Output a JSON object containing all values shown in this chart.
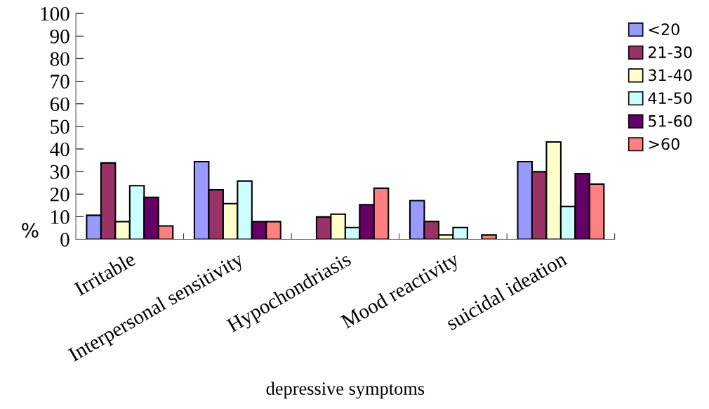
{
  "chart_data": {
    "type": "bar",
    "xlabel": "depressive symptoms",
    "ylabel": "%",
    "categories": [
      "Irritable",
      "Interpersonal sensitivity",
      "Hypochondriasis",
      "Mood reactivity",
      "suicidal ideation"
    ],
    "series": [
      {
        "name": "<20",
        "color": "#9999ff",
        "values": [
          10.6,
          34.4,
          null,
          17.1,
          34.4
        ]
      },
      {
        "name": "21-30",
        "color": "#993366",
        "values": [
          33.8,
          21.9,
          9.9,
          7.9,
          29.9
        ]
      },
      {
        "name": "31-40",
        "color": "#ffffcc",
        "values": [
          7.8,
          15.8,
          11.1,
          1.9,
          43.1
        ]
      },
      {
        "name": "41-50",
        "color": "#ccffff",
        "values": [
          23.7,
          25.8,
          5.2,
          5.2,
          14.5
        ]
      },
      {
        "name": "51-60",
        "color": "#660066",
        "values": [
          18.6,
          7.8,
          15.3,
          null,
          29.1
        ]
      },
      {
        "name": ">60",
        "color": "#ff8080",
        "values": [
          5.9,
          7.8,
          22.6,
          1.9,
          24.4
        ]
      }
    ],
    "ylim": [
      0,
      100
    ],
    "yticks": [
      0,
      10,
      20,
      30,
      40,
      50,
      60,
      70,
      80,
      90,
      100
    ],
    "grid": false,
    "legend": "right"
  }
}
